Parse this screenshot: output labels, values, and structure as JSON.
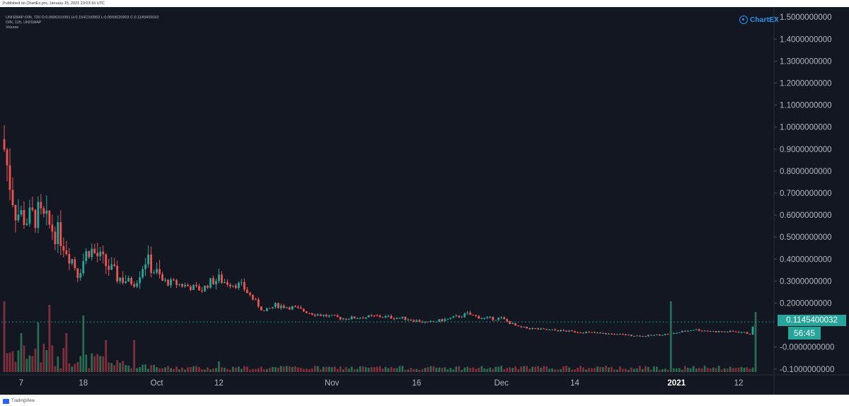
{
  "published_line": "Published on ChartEx.pro, January 15, 2021 23:03:16 UTC",
  "ohlc_line": "UNISWAP:OIN, 720  O:0.0590310991  H:0.1541150863  L:0.0559020903  C:0.1145400032",
  "pane_title": "OIN, 12h, UNISWAP",
  "volume_label": "Volume",
  "brand": "ChartEX",
  "footer": "TradingView",
  "last_price_label": "0.1145400032",
  "countdown_label": "56:45",
  "colors": {
    "background": "#131722",
    "up": "#26a69a",
    "down": "#ef5350",
    "up_volume": "#2a6b52",
    "down_volume": "#7e2f3a",
    "grid": "#1e222d",
    "axis_text": "#b2b5be",
    "accent": "#2196f3"
  },
  "chart_data": {
    "type": "candlestick",
    "interval": "12h",
    "y_axis_ticks": [
      "1.5000000000",
      "1.4000000000",
      "1.3000000000",
      "1.2000000000",
      "1.1000000000",
      "1.0000000000",
      "0.9000000000",
      "0.8000000000",
      "0.7000000000",
      "0.6000000000",
      "0.5000000000",
      "0.4000000000",
      "0.3000000000",
      "0.2000000000",
      "-0.0000000000",
      "-0.1000000000"
    ],
    "ylim": [
      -0.12,
      1.52
    ],
    "x_axis_ticks": [
      {
        "label": "7",
        "date": "2020-09-07",
        "bold": false
      },
      {
        "label": "18",
        "date": "2020-09-18",
        "bold": false
      },
      {
        "label": "Oct",
        "date": "2020-10-01",
        "bold": false
      },
      {
        "label": "12",
        "date": "2020-10-12",
        "bold": false
      },
      {
        "label": "Nov",
        "date": "2020-11-01",
        "bold": false
      },
      {
        "label": "16",
        "date": "2020-11-16",
        "bold": false
      },
      {
        "label": "Dec",
        "date": "2020-12-01",
        "bold": false
      },
      {
        "label": "14",
        "date": "2020-12-14",
        "bold": false
      },
      {
        "label": "2021",
        "date": "2021-01-01",
        "bold": true
      },
      {
        "label": "12",
        "date": "2021-01-12",
        "bold": false
      }
    ],
    "x_range": [
      "2020-09-04",
      "2021-01-15"
    ],
    "last_price": 0.1145400032,
    "anchors": [
      {
        "date": "2020-09-04",
        "close": 0.9
      },
      {
        "date": "2020-09-05",
        "close": 0.75
      },
      {
        "date": "2020-09-06",
        "close": 0.62
      },
      {
        "date": "2020-09-08",
        "close": 0.58
      },
      {
        "date": "2020-09-10",
        "close": 0.6
      },
      {
        "date": "2020-09-12",
        "close": 0.55
      },
      {
        "date": "2020-09-14",
        "close": 0.5
      },
      {
        "date": "2020-09-16",
        "close": 0.4
      },
      {
        "date": "2020-09-17",
        "close": 0.34
      },
      {
        "date": "2020-09-19",
        "close": 0.45
      },
      {
        "date": "2020-09-21",
        "close": 0.4
      },
      {
        "date": "2020-09-24",
        "close": 0.32
      },
      {
        "date": "2020-09-27",
        "close": 0.29
      },
      {
        "date": "2020-09-29",
        "close": 0.4
      },
      {
        "date": "2020-10-02",
        "close": 0.3
      },
      {
        "date": "2020-10-06",
        "close": 0.28
      },
      {
        "date": "2020-10-09",
        "close": 0.26
      },
      {
        "date": "2020-10-11",
        "close": 0.31
      },
      {
        "date": "2020-10-14",
        "close": 0.29
      },
      {
        "date": "2020-10-16",
        "close": 0.28
      },
      {
        "date": "2020-10-18",
        "close": 0.22
      },
      {
        "date": "2020-10-20",
        "close": 0.16
      },
      {
        "date": "2020-10-22",
        "close": 0.19
      },
      {
        "date": "2020-10-25",
        "close": 0.18
      },
      {
        "date": "2020-10-29",
        "close": 0.15
      },
      {
        "date": "2020-11-03",
        "close": 0.13
      },
      {
        "date": "2020-11-09",
        "close": 0.14
      },
      {
        "date": "2020-11-14",
        "close": 0.13
      },
      {
        "date": "2020-11-18",
        "close": 0.11
      },
      {
        "date": "2020-11-22",
        "close": 0.13
      },
      {
        "date": "2020-11-25",
        "close": 0.15
      },
      {
        "date": "2020-11-28",
        "close": 0.13
      },
      {
        "date": "2020-12-01",
        "close": 0.13
      },
      {
        "date": "2020-12-04",
        "close": 0.09
      },
      {
        "date": "2020-12-08",
        "close": 0.08
      },
      {
        "date": "2020-12-14",
        "close": 0.07
      },
      {
        "date": "2020-12-20",
        "close": 0.06
      },
      {
        "date": "2020-12-26",
        "close": 0.05
      },
      {
        "date": "2020-12-31",
        "close": 0.06
      },
      {
        "date": "2021-01-02",
        "close": 0.07
      },
      {
        "date": "2021-01-04",
        "close": 0.08
      },
      {
        "date": "2021-01-08",
        "close": 0.07
      },
      {
        "date": "2021-01-12",
        "close": 0.07
      },
      {
        "date": "2021-01-14",
        "close": 0.06
      },
      {
        "date": "2021-01-15",
        "close": 0.1145400032
      }
    ],
    "volume_spikes": [
      {
        "date": "2020-09-04",
        "level": 1.0
      },
      {
        "date": "2020-09-07",
        "level": 0.55
      },
      {
        "date": "2020-09-10",
        "level": 0.7
      },
      {
        "date": "2020-09-12",
        "level": 0.95
      },
      {
        "date": "2020-09-15",
        "level": 0.55
      },
      {
        "date": "2020-09-18",
        "level": 0.8
      },
      {
        "date": "2020-09-22",
        "level": 0.45
      },
      {
        "date": "2020-09-27",
        "level": 0.45
      },
      {
        "date": "2020-10-12",
        "level": 0.15
      },
      {
        "date": "2020-12-31",
        "level": 1.0
      },
      {
        "date": "2021-01-15",
        "level": 0.85
      }
    ]
  }
}
